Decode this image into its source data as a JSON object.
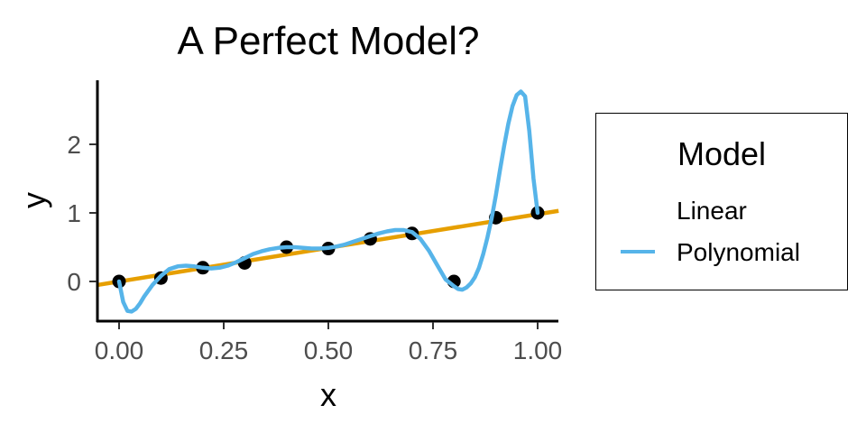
{
  "chart_data": {
    "type": "line",
    "title": "A Perfect Model?",
    "xlabel": "x",
    "ylabel": "y",
    "xlim": [
      -0.05,
      1.05
    ],
    "ylim": [
      -0.6,
      2.9
    ],
    "x_ticks": [
      0,
      0.25,
      0.5,
      0.75,
      1
    ],
    "x_tick_labels": [
      "0.00",
      "0.25",
      "0.50",
      "0.75",
      "1.00"
    ],
    "y_ticks": [
      0,
      1,
      2
    ],
    "y_tick_labels": [
      "0",
      "1",
      "2"
    ],
    "grid": false,
    "legend": {
      "title": "Model",
      "position": "right",
      "entries": [
        {
          "label": "Linear",
          "color": "#E69F00"
        },
        {
          "label": "Polynomial",
          "color": "#56B4E9"
        }
      ]
    },
    "points": {
      "x": [
        0,
        0.1,
        0.2,
        0.3,
        0.4,
        0.5,
        0.6,
        0.7,
        0.8,
        0.9,
        1.0
      ],
      "y": [
        0.0,
        0.05,
        0.2,
        0.27,
        0.5,
        0.48,
        0.62,
        0.7,
        0.0,
        0.93,
        1.0
      ],
      "color": "#000000"
    },
    "series": [
      {
        "name": "Linear",
        "color": "#E69F00",
        "x": [
          -0.05,
          1.05
        ],
        "y": [
          -0.05,
          1.03
        ]
      },
      {
        "name": "Polynomial",
        "color": "#56B4E9",
        "x": [
          0.0,
          0.01,
          0.02,
          0.03,
          0.04,
          0.05,
          0.06,
          0.08,
          0.1,
          0.12,
          0.14,
          0.16,
          0.18,
          0.2,
          0.22,
          0.24,
          0.26,
          0.28,
          0.3,
          0.32,
          0.34,
          0.36,
          0.38,
          0.4,
          0.42,
          0.44,
          0.46,
          0.48,
          0.5,
          0.52,
          0.54,
          0.56,
          0.58,
          0.6,
          0.62,
          0.64,
          0.66,
          0.68,
          0.7,
          0.72,
          0.74,
          0.76,
          0.78,
          0.8,
          0.81,
          0.82,
          0.83,
          0.84,
          0.85,
          0.86,
          0.87,
          0.88,
          0.89,
          0.9,
          0.91,
          0.92,
          0.93,
          0.94,
          0.95,
          0.96,
          0.97,
          0.98,
          0.99,
          1.0
        ],
        "y": [
          0.0,
          -0.3,
          -0.43,
          -0.44,
          -0.4,
          -0.32,
          -0.22,
          -0.05,
          0.08,
          0.18,
          0.22,
          0.23,
          0.22,
          0.2,
          0.19,
          0.2,
          0.23,
          0.28,
          0.34,
          0.4,
          0.44,
          0.47,
          0.49,
          0.5,
          0.5,
          0.49,
          0.48,
          0.48,
          0.49,
          0.51,
          0.54,
          0.58,
          0.62,
          0.66,
          0.7,
          0.73,
          0.75,
          0.75,
          0.72,
          0.62,
          0.45,
          0.24,
          0.03,
          -0.07,
          -0.11,
          -0.12,
          -0.09,
          -0.03,
          0.06,
          0.2,
          0.4,
          0.64,
          0.92,
          1.25,
          1.62,
          1.98,
          2.3,
          2.56,
          2.72,
          2.77,
          2.7,
          2.2,
          1.5,
          1.0
        ]
      }
    ]
  }
}
